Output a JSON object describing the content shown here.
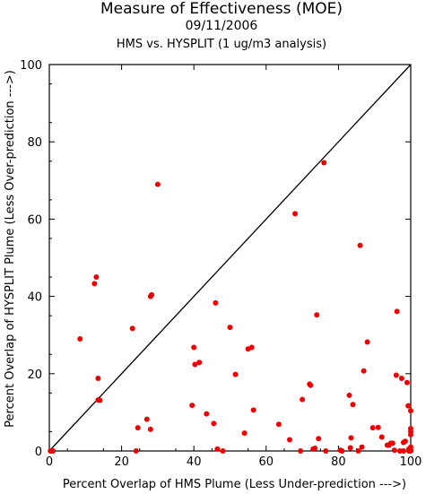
{
  "title": "Measure of Effectiveness (MOE)",
  "date": "09/11/2006",
  "subtitle": "HMS vs. HYSPLIT  (1 ug/m3 analysis)",
  "colors": {
    "points": "#ee0000",
    "axes": "#000000",
    "diagonal": "#000000"
  },
  "chart_data": {
    "type": "scatter",
    "title": "Measure of Effectiveness (MOE)",
    "subtitle": "HMS vs. HYSPLIT  (1 ug/m3 analysis)",
    "xlabel": "Percent Overlap of HMS Plume (Less Under-prediction --->)",
    "ylabel": "Percent Overlap of HYSPLIT Plume (Less Over-prediction --->)",
    "xlim": [
      0,
      100
    ],
    "ylim": [
      0,
      100
    ],
    "xticks": [
      0,
      20,
      40,
      60,
      80,
      100
    ],
    "yticks": [
      0,
      20,
      40,
      60,
      80,
      100
    ],
    "reference_line": {
      "from": [
        0,
        0
      ],
      "to": [
        100,
        100
      ]
    },
    "grid": false,
    "points": [
      [
        0.5,
        0
      ],
      [
        1,
        0
      ],
      [
        0.3,
        0
      ],
      [
        8.5,
        29
      ],
      [
        12.5,
        43.3
      ],
      [
        13,
        45
      ],
      [
        13.5,
        18.8
      ],
      [
        13.5,
        13.2
      ],
      [
        14,
        13.1
      ],
      [
        23,
        31.7
      ],
      [
        24,
        0
      ],
      [
        24.5,
        6
      ],
      [
        27,
        8.2
      ],
      [
        28,
        40
      ],
      [
        28.3,
        40.4
      ],
      [
        28,
        5.6
      ],
      [
        30,
        69
      ],
      [
        39.5,
        11.8
      ],
      [
        40,
        26.8
      ],
      [
        40.3,
        22.4
      ],
      [
        41.5,
        22.9
      ],
      [
        43.5,
        9.6
      ],
      [
        45.5,
        7.1
      ],
      [
        46,
        38.3
      ],
      [
        46.5,
        0.5
      ],
      [
        48,
        0
      ],
      [
        50,
        32
      ],
      [
        51.5,
        19.8
      ],
      [
        54,
        4.6
      ],
      [
        55,
        26.4
      ],
      [
        56,
        26.8
      ],
      [
        56.5,
        10.6
      ],
      [
        63.5,
        6.9
      ],
      [
        66.5,
        2.9
      ],
      [
        68,
        61.4
      ],
      [
        69.5,
        0
      ],
      [
        70,
        13.3
      ],
      [
        72,
        17.3
      ],
      [
        72.3,
        17
      ],
      [
        73,
        0.5
      ],
      [
        73.5,
        0.7
      ],
      [
        74,
        35.2
      ],
      [
        74.5,
        3.2
      ],
      [
        76,
        74.6
      ],
      [
        76.5,
        0
      ],
      [
        80.5,
        0.2
      ],
      [
        81,
        0
      ],
      [
        83,
        14.4
      ],
      [
        83.3,
        0.8
      ],
      [
        83.5,
        3.4
      ],
      [
        84,
        12
      ],
      [
        85.5,
        0
      ],
      [
        86,
        53.2
      ],
      [
        86.5,
        1
      ],
      [
        87,
        20.7
      ],
      [
        88,
        28.2
      ],
      [
        89.5,
        6
      ],
      [
        91,
        6.1
      ],
      [
        92,
        3.6
      ],
      [
        93.5,
        1.5
      ],
      [
        94,
        1.5
      ],
      [
        94.5,
        2
      ],
      [
        95,
        2
      ],
      [
        95.5,
        0.2
      ],
      [
        96,
        19.6
      ],
      [
        96.2,
        36.1
      ],
      [
        97,
        0
      ],
      [
        97.5,
        18.8
      ],
      [
        98,
        2.2
      ],
      [
        98.5,
        2.5
      ],
      [
        99,
        17.7
      ],
      [
        99.3,
        11.7
      ],
      [
        99.5,
        0.5
      ],
      [
        99.5,
        0
      ],
      [
        100,
        0.2
      ],
      [
        100,
        5
      ],
      [
        100.3,
        10.4
      ],
      [
        100.5,
        5.8
      ],
      [
        100,
        4.2
      ],
      [
        100,
        1
      ],
      [
        99.8,
        0.6
      ],
      [
        100.2,
        0
      ],
      [
        98,
        0
      ]
    ]
  }
}
